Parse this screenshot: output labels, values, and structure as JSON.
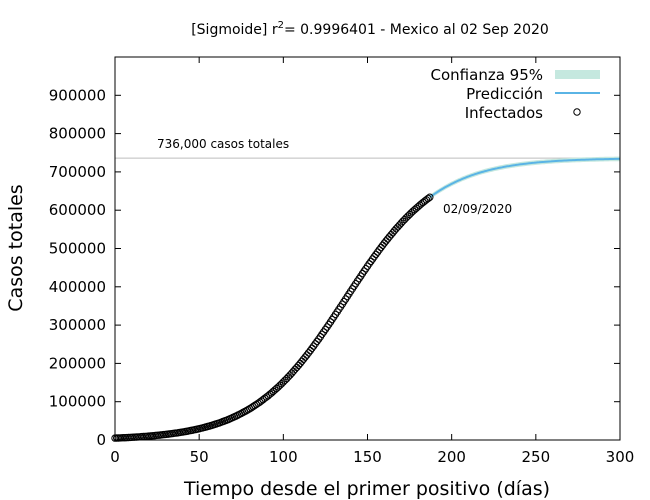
{
  "chart_data": {
    "type": "line",
    "title_prefix": "[Sigmoide] r",
    "title_superscript": "2",
    "title_suffix": "= 0.9996401 - Mexico al 02 Sep 2020",
    "xlabel": "Tiempo desde el primer positivo (días)",
    "ylabel": "Casos totales",
    "xlim": [
      0,
      300
    ],
    "ylim": [
      0,
      1000000
    ],
    "x_ticks": [
      0,
      50,
      100,
      150,
      200,
      250,
      300
    ],
    "y_ticks": [
      0,
      100000,
      200000,
      300000,
      400000,
      500000,
      600000,
      700000,
      800000,
      900000
    ],
    "x_tick_labels": [
      "0",
      "50",
      "100",
      "150",
      "200",
      "250",
      "300"
    ],
    "y_tick_labels": [
      "0",
      "100000",
      "200000",
      "300000",
      "400000",
      "500000",
      "600000",
      "700000",
      "800000",
      "900000"
    ],
    "grid": false,
    "legend_position": "top-right",
    "legend": [
      "Confianza 95%",
      "Predicción",
      "Infectados"
    ],
    "colors": {
      "prediction": "#5ab4e5",
      "confidence": "#c5e8df",
      "points": "#000000",
      "reference_line": "#bdbdbd"
    },
    "sigmoid": {
      "K": 736000,
      "x0": 137,
      "rate": 0.0365
    },
    "prediction_x_range": [
      187,
      300
    ],
    "confidence_half_width": 6000,
    "observed_x": [
      0,
      187
    ],
    "observed_step": 1,
    "reference_line": {
      "y": 736000,
      "label": "736,000 casos totales"
    },
    "last_point_label": "02/09/2020"
  }
}
